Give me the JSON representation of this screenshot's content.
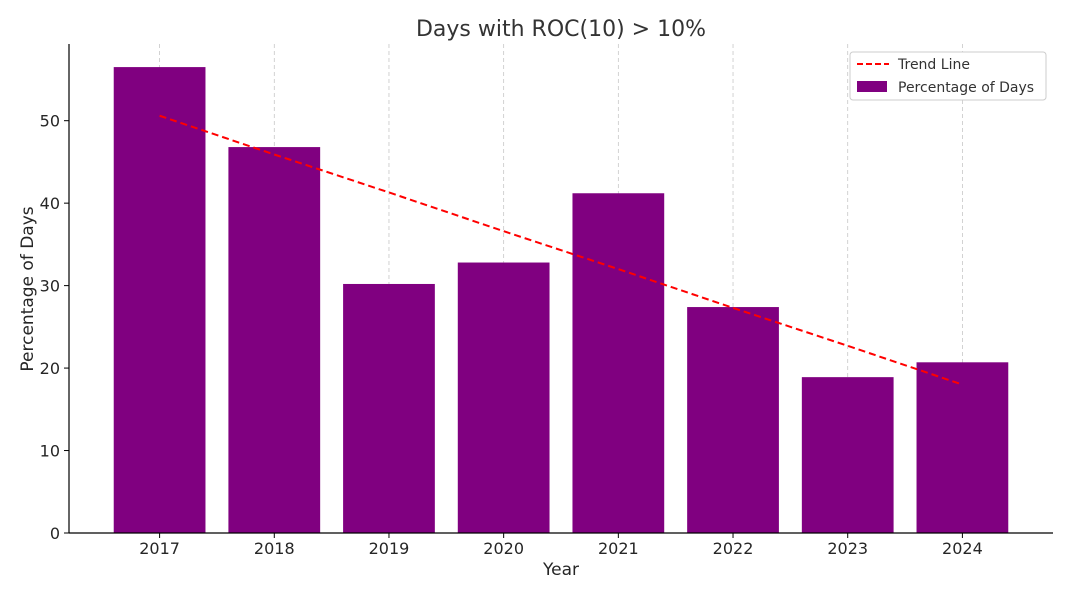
{
  "chart_data": {
    "type": "bar",
    "title": "Days with ROC(10) > 10%",
    "xlabel": "Year",
    "ylabel": "Percentage of Days",
    "categories": [
      "2017",
      "2018",
      "2019",
      "2020",
      "2021",
      "2022",
      "2023",
      "2024"
    ],
    "series": [
      {
        "name": "Percentage of Days",
        "type": "bar",
        "color": "#800080",
        "values": [
          56.5,
          46.8,
          30.2,
          32.8,
          41.2,
          27.4,
          18.9,
          20.7
        ]
      },
      {
        "name": "Trend Line",
        "type": "line",
        "style": "dashed",
        "color": "#ff0000",
        "values": [
          50.6,
          45.9,
          41.3,
          36.6,
          32.0,
          27.3,
          22.7,
          18.0
        ]
      }
    ],
    "ylim": [
      0,
      59.3
    ],
    "yticks": [
      0,
      10,
      20,
      30,
      40,
      50
    ],
    "grid": "vertical dashed at x ticks",
    "legend": "top-right"
  }
}
